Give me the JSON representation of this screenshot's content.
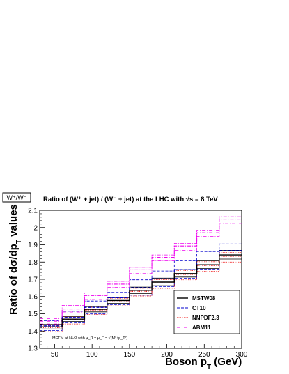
{
  "chart_data": {
    "type": "line",
    "tag": "W⁺/W⁻",
    "title": "Ratio of (W⁺ + jet) / (W⁻ + jet) at the LHC with √s = 8 TeV",
    "xlabel": "Boson p_T  (GeV)",
    "ylabel": "Ratio of dσ/dp_T values",
    "xlim": [
      30,
      300
    ],
    "ylim": [
      1.3,
      2.1
    ],
    "x_ticks": [
      "50",
      "100",
      "150",
      "200",
      "250",
      "300"
    ],
    "y_ticks": [
      "1.3",
      "1.4",
      "1.5",
      "1.6",
      "1.7",
      "1.8",
      "1.9",
      "2",
      "2.1"
    ],
    "bin_edges": [
      30,
      60,
      90,
      120,
      150,
      180,
      210,
      240,
      270,
      300
    ],
    "annotation": "MCFM at NLO with μ_R = μ_F = √(M²+p_T²)",
    "legend_position": "bottom-right",
    "series": [
      {
        "name": "MSTW08",
        "color": "#000000",
        "style": "solid",
        "central": [
          1.424,
          1.469,
          1.526,
          1.577,
          1.636,
          1.684,
          1.733,
          1.784,
          1.841
        ],
        "upper": [
          1.438,
          1.484,
          1.542,
          1.594,
          1.655,
          1.707,
          1.756,
          1.808,
          1.868
        ],
        "lower": [
          1.412,
          1.455,
          1.511,
          1.561,
          1.617,
          1.663,
          1.713,
          1.763,
          1.817
        ]
      },
      {
        "name": "CT10",
        "color": "#0000cc",
        "style": "dashed",
        "central": [
          1.43,
          1.479,
          1.537,
          1.593,
          1.651,
          1.703,
          1.756,
          1.811,
          1.866
        ],
        "upper": [
          1.459,
          1.515,
          1.574,
          1.624,
          1.697,
          1.748,
          1.808,
          1.861,
          1.905
        ],
        "lower": [
          1.403,
          1.447,
          1.499,
          1.553,
          1.608,
          1.657,
          1.706,
          1.758,
          1.811
        ]
      },
      {
        "name": "NNPDF2.3",
        "color": "#ee0000",
        "style": "dotted",
        "central": [
          1.42,
          1.466,
          1.522,
          1.575,
          1.63,
          1.678,
          1.728,
          1.78,
          1.833
        ],
        "upper": [
          1.433,
          1.482,
          1.538,
          1.59,
          1.648,
          1.698,
          1.75,
          1.802,
          1.856
        ],
        "lower": [
          1.397,
          1.441,
          1.495,
          1.546,
          1.603,
          1.647,
          1.697,
          1.747,
          1.8
        ]
      },
      {
        "name": "ABM11",
        "color": "#ee00ee",
        "style": "dashdot",
        "central": [
          1.457,
          1.528,
          1.606,
          1.672,
          1.755,
          1.827,
          1.893,
          1.97,
          2.049
        ],
        "upper": [
          1.472,
          1.549,
          1.621,
          1.688,
          1.769,
          1.841,
          1.908,
          1.985,
          2.063
        ],
        "lower": [
          1.441,
          1.51,
          1.583,
          1.653,
          1.733,
          1.807,
          1.868,
          1.948,
          2.023
        ]
      }
    ]
  }
}
